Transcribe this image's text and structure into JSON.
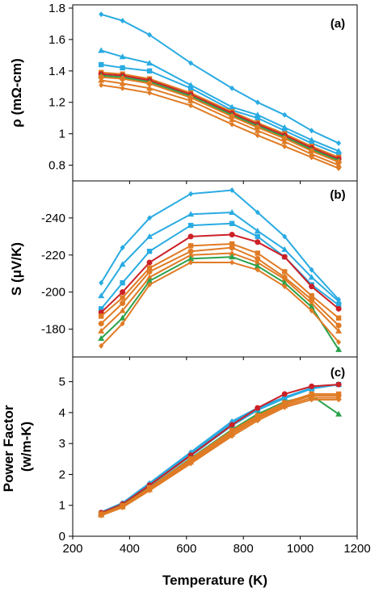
{
  "chart_data": [
    {
      "type": "line",
      "panel_label": "(a)",
      "ylabel": "ρ (mΩ-cm)",
      "xlim": [
        200,
        1200
      ],
      "ylim": [
        0.7,
        1.8
      ],
      "yticks": [
        "0.8",
        "1",
        "1.2",
        "1.4",
        "1.6",
        "1.8"
      ],
      "x": [
        300,
        375,
        470,
        615,
        760,
        850,
        945,
        1040,
        1135
      ],
      "series": [
        {
          "color": "#29abe2",
          "marker": "diamond",
          "values": [
            1.76,
            1.72,
            1.63,
            1.45,
            1.29,
            1.2,
            1.12,
            1.02,
            0.94
          ]
        },
        {
          "color": "#29abe2",
          "marker": "triangle",
          "values": [
            1.53,
            1.49,
            1.45,
            1.31,
            1.17,
            1.12,
            1.04,
            0.96,
            0.89
          ]
        },
        {
          "color": "#29abe2",
          "marker": "square",
          "values": [
            1.44,
            1.42,
            1.4,
            1.29,
            1.15,
            1.1,
            1.02,
            0.94,
            0.87
          ]
        },
        {
          "color": "#e07b25",
          "marker": "square",
          "values": [
            1.39,
            1.38,
            1.35,
            1.26,
            1.14,
            1.07,
            1.0,
            0.92,
            0.85
          ]
        },
        {
          "color": "#cc2027",
          "marker": "circle",
          "values": [
            1.38,
            1.37,
            1.34,
            1.25,
            1.13,
            1.06,
            0.99,
            0.91,
            0.84
          ]
        },
        {
          "color": "#2ba24c",
          "marker": "triangle",
          "values": [
            1.37,
            1.36,
            1.33,
            1.24,
            1.12,
            1.05,
            0.98,
            0.9,
            0.83
          ]
        },
        {
          "color": "#e07b25",
          "marker": "circle",
          "values": [
            1.36,
            1.35,
            1.32,
            1.23,
            1.11,
            1.04,
            0.97,
            0.89,
            0.82
          ]
        },
        {
          "color": "#e07b25",
          "marker": "triangle",
          "values": [
            1.34,
            1.32,
            1.29,
            1.21,
            1.09,
            1.02,
            0.95,
            0.87,
            0.8
          ]
        },
        {
          "color": "#e07b25",
          "marker": "diamond",
          "values": [
            1.31,
            1.29,
            1.26,
            1.18,
            1.06,
            0.99,
            0.92,
            0.85,
            0.78
          ]
        }
      ]
    },
    {
      "type": "line",
      "panel_label": "(b)",
      "ylabel": "S (μV/K)",
      "xlim": [
        200,
        1200
      ],
      "ylim": [
        -165,
        -260
      ],
      "yticks": [
        "-180",
        "-200",
        "-220",
        "-240"
      ],
      "x": [
        300,
        375,
        470,
        615,
        760,
        850,
        945,
        1040,
        1135
      ],
      "series": [
        {
          "color": "#29abe2",
          "marker": "diamond",
          "values": [
            -205,
            -224,
            -240,
            -253,
            -255,
            -243,
            -230,
            -212,
            -196
          ]
        },
        {
          "color": "#29abe2",
          "marker": "triangle",
          "values": [
            -198,
            -215,
            -230,
            -242,
            -243,
            -233,
            -223,
            -208,
            -195
          ]
        },
        {
          "color": "#29abe2",
          "marker": "square",
          "values": [
            -191,
            -205,
            -222,
            -236,
            -237,
            -230,
            -219,
            -204,
            -193
          ]
        },
        {
          "color": "#cc2027",
          "marker": "circle",
          "values": [
            -189,
            -200,
            -216,
            -230,
            -231,
            -227,
            -219,
            -203,
            -191
          ]
        },
        {
          "color": "#e07b25",
          "marker": "square",
          "values": [
            -187,
            -197,
            -213,
            -225,
            -226,
            -221,
            -211,
            -198,
            -186
          ]
        },
        {
          "color": "#e07b25",
          "marker": "circle",
          "values": [
            -183,
            -194,
            -211,
            -222,
            -224,
            -218,
            -208,
            -196,
            -182
          ]
        },
        {
          "color": "#e07b25",
          "marker": "triangle",
          "values": [
            -179,
            -190,
            -208,
            -220,
            -221,
            -216,
            -207,
            -194,
            -179
          ]
        },
        {
          "color": "#2ba24c",
          "marker": "triangle",
          "values": [
            -175,
            -186,
            -206,
            -218,
            -219,
            -214,
            -205,
            -192,
            -169
          ]
        },
        {
          "color": "#e07b25",
          "marker": "diamond",
          "values": [
            -171,
            -183,
            -204,
            -216,
            -216,
            -212,
            -203,
            -190,
            -173
          ]
        }
      ]
    },
    {
      "type": "line",
      "panel_label": "(c)",
      "ylabel": "Power Factor (w/m-K)",
      "xlabel": "Temperature (K)",
      "xlim": [
        200,
        1200
      ],
      "ylim": [
        0,
        5.8
      ],
      "yticks": [
        "0",
        "1",
        "2",
        "3",
        "4",
        "5"
      ],
      "xticks": [
        "200",
        "400",
        "600",
        "800",
        "1000",
        "1200"
      ],
      "x": [
        300,
        375,
        470,
        615,
        760,
        850,
        945,
        1040,
        1135
      ],
      "series": [
        {
          "color": "#29abe2",
          "marker": "diamond",
          "values": [
            0.78,
            1.08,
            1.72,
            2.72,
            3.72,
            4.15,
            4.5,
            4.8,
            4.91
          ]
        },
        {
          "color": "#29abe2",
          "marker": "triangle",
          "values": [
            0.76,
            1.06,
            1.68,
            2.66,
            3.66,
            4.12,
            4.48,
            4.78,
            4.91
          ]
        },
        {
          "color": "#29abe2",
          "marker": "square",
          "values": [
            0.74,
            1.03,
            1.64,
            2.6,
            3.58,
            4.08,
            4.46,
            4.77,
            4.91
          ]
        },
        {
          "color": "#cc2027",
          "marker": "circle",
          "values": [
            0.76,
            1.04,
            1.65,
            2.62,
            3.6,
            4.15,
            4.6,
            4.85,
            4.91
          ]
        },
        {
          "color": "#2ba24c",
          "marker": "triangle",
          "values": [
            0.72,
            1.0,
            1.58,
            2.52,
            3.45,
            3.95,
            4.35,
            4.55,
            3.95
          ]
        },
        {
          "color": "#e07b25",
          "marker": "square",
          "values": [
            0.72,
            0.99,
            1.57,
            2.5,
            3.42,
            3.9,
            4.32,
            4.6,
            4.6
          ]
        },
        {
          "color": "#e07b25",
          "marker": "circle",
          "values": [
            0.7,
            0.97,
            1.54,
            2.45,
            3.36,
            3.85,
            4.27,
            4.55,
            4.55
          ]
        },
        {
          "color": "#e07b25",
          "marker": "triangle",
          "values": [
            0.69,
            0.95,
            1.51,
            2.4,
            3.3,
            3.8,
            4.22,
            4.48,
            4.48
          ]
        },
        {
          "color": "#e07b25",
          "marker": "diamond",
          "values": [
            0.67,
            0.93,
            1.48,
            2.35,
            3.24,
            3.74,
            4.17,
            4.42,
            4.42
          ]
        }
      ]
    }
  ]
}
